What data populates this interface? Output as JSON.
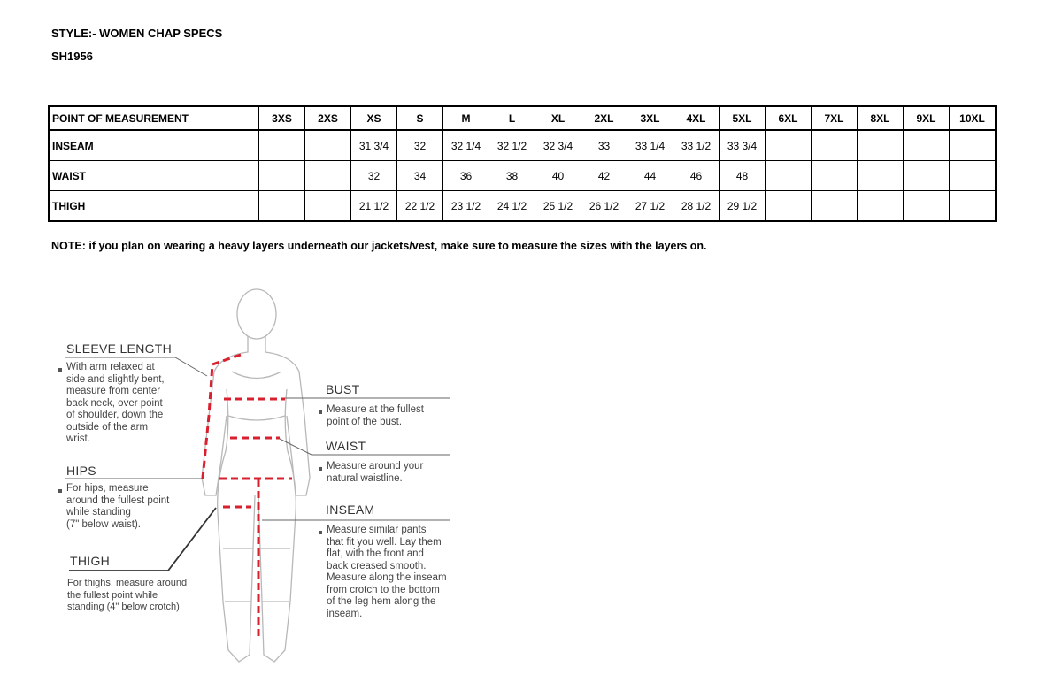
{
  "header": {
    "style": "STYLE:- WOMEN CHAP SPECS",
    "code": "SH1956"
  },
  "table": {
    "columns": [
      "POINT OF MEASUREMENT",
      "3XS",
      "2XS",
      "XS",
      "S",
      "M",
      "L",
      "XL",
      "2XL",
      "3XL",
      "4XL",
      "5XL",
      "6XL",
      "7XL",
      "8XL",
      "9XL",
      "10XL"
    ],
    "rows": [
      [
        "INSEAM",
        "",
        "",
        "31 3/4",
        "32",
        "32 1/4",
        "32 1/2",
        "32 3/4",
        "33",
        "33 1/4",
        "33 1/2",
        "33 3/4",
        "",
        "",
        "",
        "",
        ""
      ],
      [
        "WAIST",
        "",
        "",
        "32",
        "34",
        "36",
        "38",
        "40",
        "42",
        "44",
        "46",
        "48",
        "",
        "",
        "",
        "",
        ""
      ],
      [
        "THIGH",
        "",
        "",
        "21 1/2",
        "22 1/2",
        "23 1/2",
        "24 1/2",
        "25 1/2",
        "26 1/2",
        "27 1/2",
        "28 1/2",
        "29 1/2",
        "",
        "",
        "",
        "",
        ""
      ]
    ]
  },
  "note": "NOTE: if you plan on wearing a heavy layers underneath our jackets/vest, make sure to measure the sizes with the layers on.",
  "guide": {
    "sleeve": {
      "title": "SLEEVE LENGTH",
      "text": "With arm relaxed at\nside and slightly bent,\nmeasure from center\nback neck, over point\nof shoulder, down the\noutside of the arm\nwrist."
    },
    "hips": {
      "title": "HIPS",
      "text": "For hips, measure\naround the fullest point\nwhile standing\n(7\" below waist)."
    },
    "thigh": {
      "title": "THIGH",
      "text": "For thighs, measure around\nthe fullest point while\nstanding (4\" below crotch)"
    },
    "bust": {
      "title": "BUST",
      "text": "Measure at the fullest\npoint of the bust."
    },
    "waist": {
      "title": "WAIST",
      "text": "Measure around your\nnatural waistline."
    },
    "inseam": {
      "title": "INSEAM",
      "text": "Measure similar pants\nthat fit you well. Lay them\nflat, with the front and\nback creased smooth.\nMeasure along the inseam\nfrom crotch to the bottom\nof the leg hem along the\ninseam."
    }
  },
  "colors": {
    "measure_line": "#d9202f",
    "figure_line": "#b5b5b5"
  }
}
